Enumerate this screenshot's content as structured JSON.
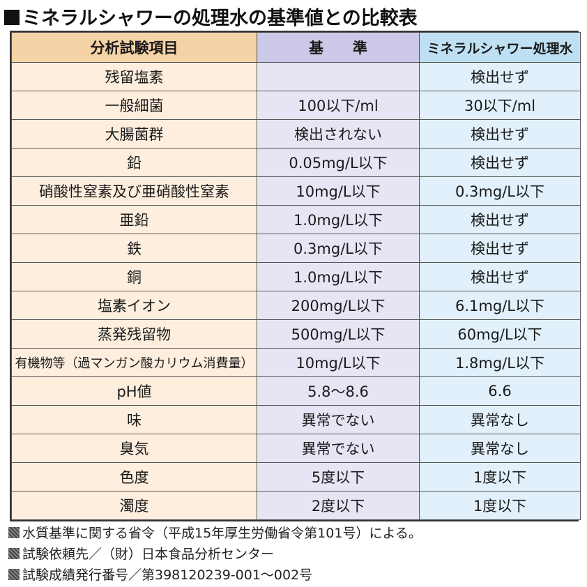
{
  "title": "ミネラルシャワーの処理水の基準値との比較表",
  "table": {
    "headers": [
      "分析試験項目",
      "基　　準",
      "ミネラルシャワー処理水"
    ],
    "rows": [
      [
        "残留塩素",
        "",
        "検出せず"
      ],
      [
        "一般細菌",
        "100以下/ml",
        "30以下/ml"
      ],
      [
        "大腸菌群",
        "検出されない",
        "検出せず"
      ],
      [
        "鉛",
        "0.05mg/L以下",
        "検出せず"
      ],
      [
        "硝酸性窒素及び亜硝酸性窒素",
        "10mg/L以下",
        "0.3mg/L以下"
      ],
      [
        "亜鉛",
        "1.0mg/L以下",
        "検出せず"
      ],
      [
        "鉄",
        "0.3mg/L以下",
        "検出せず"
      ],
      [
        "銅",
        "1.0mg/L以下",
        "検出せず"
      ],
      [
        "塩素イオン",
        "200mg/L以下",
        "6.1mg/L以下"
      ],
      [
        "蒸発残留物",
        "500mg/L以下",
        "60mg/L以下"
      ],
      [
        "有機物等（過マンガン酸カリウム消費量）",
        "10mg/L以下",
        "1.8mg/L以下"
      ],
      [
        "pH値",
        "5.8〜8.6",
        "6.6"
      ],
      [
        "味",
        "異常でない",
        "異常なし"
      ],
      [
        "臭気",
        "異常でない",
        "異常なし"
      ],
      [
        "色度",
        "5度以下",
        "1度以下"
      ],
      [
        "濁度",
        "2度以下",
        "1度以下"
      ]
    ]
  },
  "notes": [
    "水質基準に関する省令（平成15年厚生労働省令第101号）による。",
    "試験依頼先／（財）日本食品分析センター",
    "試験成績発行番号／第398120239-001〜002号"
  ]
}
